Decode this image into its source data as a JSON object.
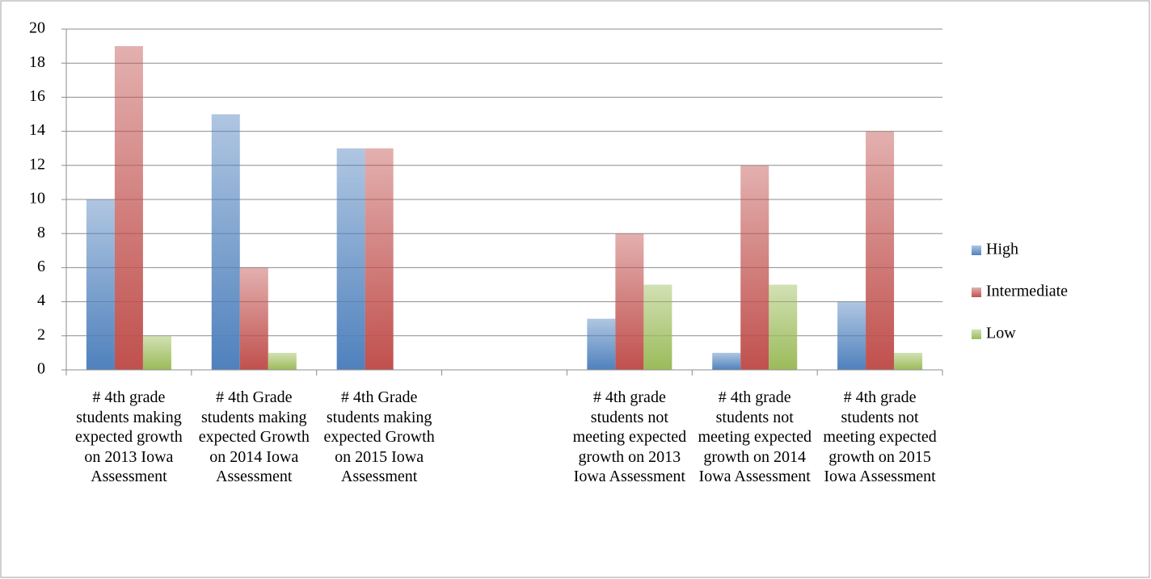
{
  "chart_data": {
    "type": "bar",
    "categories": [
      "# 4th grade students making expected growth on 2013 Iowa Assessment",
      "# 4th Grade students making expected Growth on 2014 Iowa Assessment",
      "# 4th Grade students making expected Growth on 2015 Iowa Assessment",
      null,
      "# 4th grade students not meeting expected growth on 2013 Iowa Assessment",
      "# 4th grade students not meeting expected growth on 2014 Iowa Assessment",
      "# 4th grade students not meeting expected growth on 2015 Iowa Assessment"
    ],
    "series": [
      {
        "name": "High",
        "color": "#4f81bd",
        "values": [
          10,
          15,
          13,
          null,
          3,
          1,
          4
        ]
      },
      {
        "name": "Intermediate",
        "color": "#c0504d",
        "values": [
          19,
          6,
          13,
          null,
          8,
          12,
          14
        ]
      },
      {
        "name": "Low",
        "color": "#9bbb59",
        "values": [
          2,
          1,
          0,
          null,
          5,
          5,
          1
        ]
      }
    ],
    "ylim": [
      0,
      20
    ],
    "yticks": [
      0,
      2,
      4,
      6,
      8,
      10,
      12,
      14,
      16,
      18,
      20
    ],
    "grid": true,
    "legend": "right"
  }
}
